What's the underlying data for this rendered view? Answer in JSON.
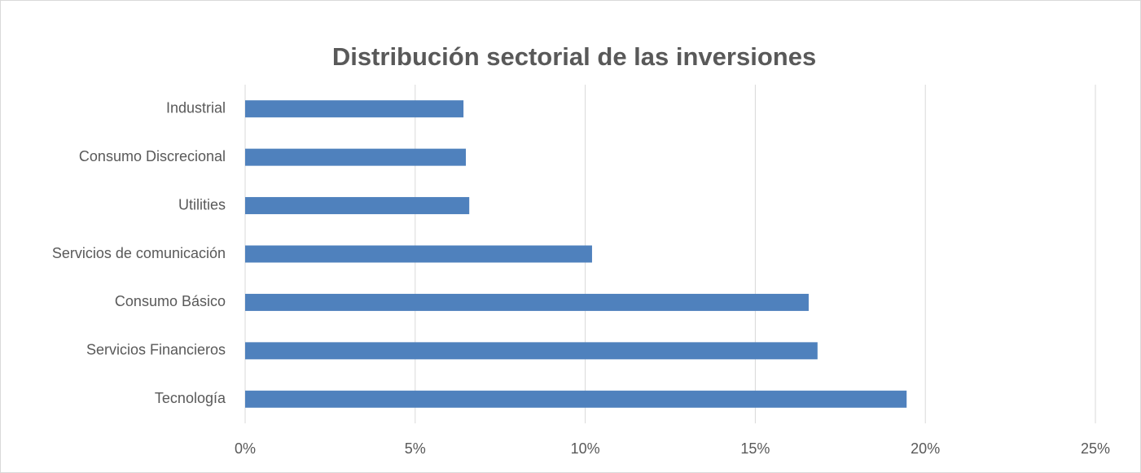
{
  "chart_data": {
    "type": "bar",
    "orientation": "horizontal",
    "title": "Distribución sectorial de las inversiones",
    "categories": [
      "Industrial",
      "Consumo Discrecional",
      "Utilities",
      "Servicios de comunicación",
      "Consumo Básico",
      "Servicios Financieros",
      "Tecnología"
    ],
    "values": [
      6.42,
      6.49,
      6.59,
      10.2,
      16.57,
      16.83,
      19.45
    ],
    "color": "#4f81bd",
    "xlim": [
      0,
      25
    ],
    "xticks": [
      {
        "value": 0,
        "label": "0%"
      },
      {
        "value": 5,
        "label": "5%"
      },
      {
        "value": 10,
        "label": "10%"
      },
      {
        "value": 15,
        "label": "15%"
      },
      {
        "value": 20,
        "label": "20%"
      },
      {
        "value": 25,
        "label": "25%"
      }
    ],
    "grid": true
  }
}
